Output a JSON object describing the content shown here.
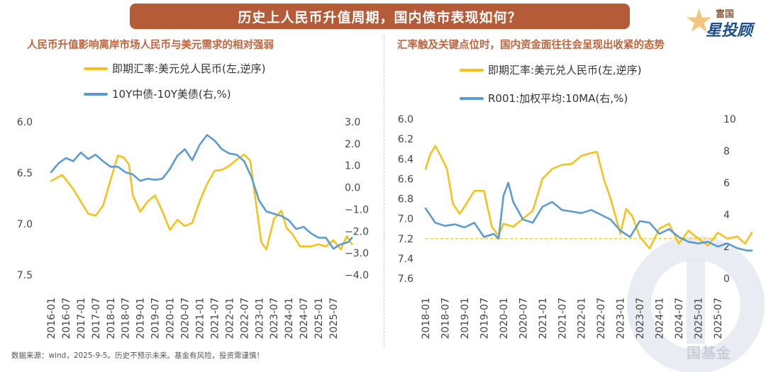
{
  "banner_title": "历史上人民币升值周期，国内债市表现如何？",
  "logo": {
    "line1": "富国",
    "line2": "星投顾"
  },
  "watermark_text": "国基金",
  "source_note": "数据来源：wind，2025-9-5。历史不预示未来。基金有风险，投资需谨慎！",
  "colors": {
    "yellow": "#f5c21b",
    "blue": "#5b9bd5",
    "accent": "#c0633c",
    "banner": "#b55b37"
  },
  "chart_data": [
    {
      "type": "line",
      "title": "人民币升值影响离岸市场人民币与美元需求的相对强弱",
      "x_ticks": [
        "2016-01",
        "2016-07",
        "2017-01",
        "2017-07",
        "2018-01",
        "2018-07",
        "2019-01",
        "2019-07",
        "2020-01",
        "2020-07",
        "2021-01",
        "2021-07",
        "2022-01",
        "2022-07",
        "2023-01",
        "2023-07",
        "2024-01",
        "2024-07",
        "2025-01",
        "2025-07"
      ],
      "y_left": {
        "ticks": [
          "6.0",
          "6.5",
          "7.0",
          "7.5"
        ],
        "min": 6.0,
        "max": 7.5,
        "inverted": true
      },
      "y_right": {
        "ticks": [
          "3.0",
          "2.0",
          "1.0",
          "0.0",
          "−1.0",
          "−2.0",
          "−3.0",
          "−4.0"
        ],
        "min": -4.0,
        "max": 3.0
      },
      "series": [
        {
          "name": "即期汇率:美元兑人民币(左,逆序)",
          "axis": "left",
          "color": "#f5c21b",
          "points": [
            [
              0,
              6.58
            ],
            [
              1.5,
              6.52
            ],
            [
              3,
              6.66
            ],
            [
              4,
              6.78
            ],
            [
              5,
              6.9
            ],
            [
              6,
              6.92
            ],
            [
              7,
              6.82
            ],
            [
              8,
              6.57
            ],
            [
              9,
              6.33
            ],
            [
              9.8,
              6.35
            ],
            [
              10.5,
              6.42
            ],
            [
              11,
              6.72
            ],
            [
              12,
              6.88
            ],
            [
              13,
              6.78
            ],
            [
              14,
              6.72
            ],
            [
              15,
              6.88
            ],
            [
              16,
              7.06
            ],
            [
              17,
              6.96
            ],
            [
              18,
              7.02
            ],
            [
              19,
              6.99
            ],
            [
              20,
              6.78
            ],
            [
              21,
              6.61
            ],
            [
              22,
              6.48
            ],
            [
              23,
              6.47
            ],
            [
              24,
              6.43
            ],
            [
              25,
              6.37
            ],
            [
              26,
              6.32
            ],
            [
              26.8,
              6.38
            ],
            [
              27.5,
              6.75
            ],
            [
              28.3,
              7.18
            ],
            [
              29,
              7.25
            ],
            [
              30,
              6.95
            ],
            [
              31,
              6.87
            ],
            [
              31.7,
              7.04
            ],
            [
              32.5,
              7.1
            ],
            [
              33.5,
              7.22
            ],
            [
              35,
              7.22
            ],
            [
              36,
              7.2
            ],
            [
              37,
              7.22
            ],
            [
              38,
              7.16
            ],
            [
              39,
              7.25
            ],
            [
              39.8,
              7.12
            ],
            [
              40.5,
              7.2
            ]
          ]
        },
        {
          "name": "10Y中债-10Y美债(右,%)",
          "axis": "right",
          "color": "#5b9bd5",
          "points": [
            [
              0,
              0.7
            ],
            [
              1,
              1.1
            ],
            [
              2,
              1.35
            ],
            [
              3,
              1.2
            ],
            [
              4,
              1.6
            ],
            [
              5,
              1.3
            ],
            [
              6,
              1.5
            ],
            [
              7,
              1.2
            ],
            [
              8,
              0.95
            ],
            [
              9,
              0.95
            ],
            [
              10,
              0.7
            ],
            [
              11,
              0.6
            ],
            [
              12,
              0.3
            ],
            [
              13,
              0.4
            ],
            [
              14,
              0.35
            ],
            [
              15,
              0.4
            ],
            [
              16,
              0.85
            ],
            [
              17,
              1.45
            ],
            [
              18,
              1.75
            ],
            [
              19,
              1.25
            ],
            [
              20,
              1.95
            ],
            [
              21,
              2.4
            ],
            [
              22,
              2.15
            ],
            [
              23,
              1.75
            ],
            [
              24,
              1.55
            ],
            [
              25,
              1.5
            ],
            [
              26,
              1.2
            ],
            [
              27,
              0.45
            ],
            [
              28,
              -0.6
            ],
            [
              29,
              -1.1
            ],
            [
              30,
              -1.2
            ],
            [
              31,
              -1.3
            ],
            [
              32,
              -1.5
            ],
            [
              33,
              -1.9
            ],
            [
              34,
              -1.8
            ],
            [
              35,
              -2.1
            ],
            [
              36,
              -2.3
            ],
            [
              37,
              -2.3
            ],
            [
              38,
              -2.8
            ],
            [
              39,
              -2.6
            ],
            [
              40,
              -2.5
            ],
            [
              40.5,
              -2.3
            ]
          ]
        }
      ]
    },
    {
      "type": "line",
      "title": "汇率触及关键点位时，国内资金面往往会呈现出收紧的态势",
      "x_ticks": [
        "2018-01",
        "2018-07",
        "2019-01",
        "2019-07",
        "2020-01",
        "2020-07",
        "2021-01",
        "2021-07",
        "2022-01",
        "2022-07",
        "2023-01",
        "2023-07",
        "2024-01",
        "2024-07",
        "2025-01",
        "2025-07"
      ],
      "y_left": {
        "ticks": [
          "6.0",
          "6.2",
          "6.4",
          "6.6",
          "6.8",
          "7.0",
          "7.2",
          "7.4",
          "7.6"
        ],
        "min": 6.0,
        "max": 7.6,
        "inverted": true
      },
      "y_right": {
        "ticks": [
          "10",
          "8",
          "6",
          "4",
          "2",
          "0"
        ],
        "min": 0,
        "max": 10
      },
      "reference_line": {
        "axis": "left",
        "value": 7.2,
        "color": "#f5c21b"
      },
      "series": [
        {
          "name": "即期汇率:美元兑人民币(左,逆序)",
          "axis": "left",
          "color": "#f5c21b",
          "points": [
            [
              0,
              6.5
            ],
            [
              0.5,
              6.35
            ],
            [
              1,
              6.27
            ],
            [
              1.6,
              6.38
            ],
            [
              2.2,
              6.5
            ],
            [
              2.8,
              6.85
            ],
            [
              3.5,
              6.95
            ],
            [
              4,
              6.88
            ],
            [
              5,
              6.72
            ],
            [
              6,
              6.72
            ],
            [
              6.8,
              7.08
            ],
            [
              7.5,
              7.17
            ],
            [
              8,
              7.05
            ],
            [
              9,
              7.08
            ],
            [
              10,
              7.0
            ],
            [
              11,
              6.92
            ],
            [
              12,
              6.6
            ],
            [
              13,
              6.5
            ],
            [
              14,
              6.46
            ],
            [
              15,
              6.45
            ],
            [
              16,
              6.37
            ],
            [
              17,
              6.34
            ],
            [
              17.6,
              6.33
            ],
            [
              18.3,
              6.6
            ],
            [
              19,
              6.8
            ],
            [
              20,
              7.15
            ],
            [
              20.6,
              6.9
            ],
            [
              21.2,
              6.97
            ],
            [
              22,
              7.18
            ],
            [
              23,
              7.3
            ],
            [
              24,
              7.1
            ],
            [
              25,
              7.05
            ],
            [
              26,
              7.25
            ],
            [
              27,
              7.12
            ],
            [
              28,
              7.2
            ],
            [
              29,
              7.27
            ],
            [
              30,
              7.14
            ],
            [
              31,
              7.2
            ],
            [
              32,
              7.18
            ],
            [
              32.8,
              7.25
            ],
            [
              33.5,
              7.14
            ]
          ]
        },
        {
          "name": "R001:加权平均:10MA(右,%)",
          "axis": "right",
          "color": "#5b9bd5",
          "points": [
            [
              0,
              4.4
            ],
            [
              1,
              3.5
            ],
            [
              2,
              3.3
            ],
            [
              3,
              3.4
            ],
            [
              4,
              3.2
            ],
            [
              5,
              3.5
            ],
            [
              6,
              2.6
            ],
            [
              7,
              2.8
            ],
            [
              7.5,
              2.5
            ],
            [
              8,
              5.2
            ],
            [
              8.5,
              6.0
            ],
            [
              9,
              4.8
            ],
            [
              10,
              3.7
            ],
            [
              11,
              3.5
            ],
            [
              12,
              4.5
            ],
            [
              13,
              4.8
            ],
            [
              14,
              4.3
            ],
            [
              15,
              4.2
            ],
            [
              16,
              4.1
            ],
            [
              17,
              4.3
            ],
            [
              18,
              4.0
            ],
            [
              19,
              3.7
            ],
            [
              20,
              3.0
            ],
            [
              21,
              2.6
            ],
            [
              22,
              3.6
            ],
            [
              23,
              3.5
            ],
            [
              24,
              2.8
            ],
            [
              25,
              3.1
            ],
            [
              26,
              2.6
            ],
            [
              27,
              2.3
            ],
            [
              28,
              2.2
            ],
            [
              29,
              2.3
            ],
            [
              30,
              2.0
            ],
            [
              31,
              2.2
            ],
            [
              32,
              1.9
            ],
            [
              33,
              1.75
            ],
            [
              33.5,
              1.75
            ]
          ]
        }
      ]
    }
  ]
}
